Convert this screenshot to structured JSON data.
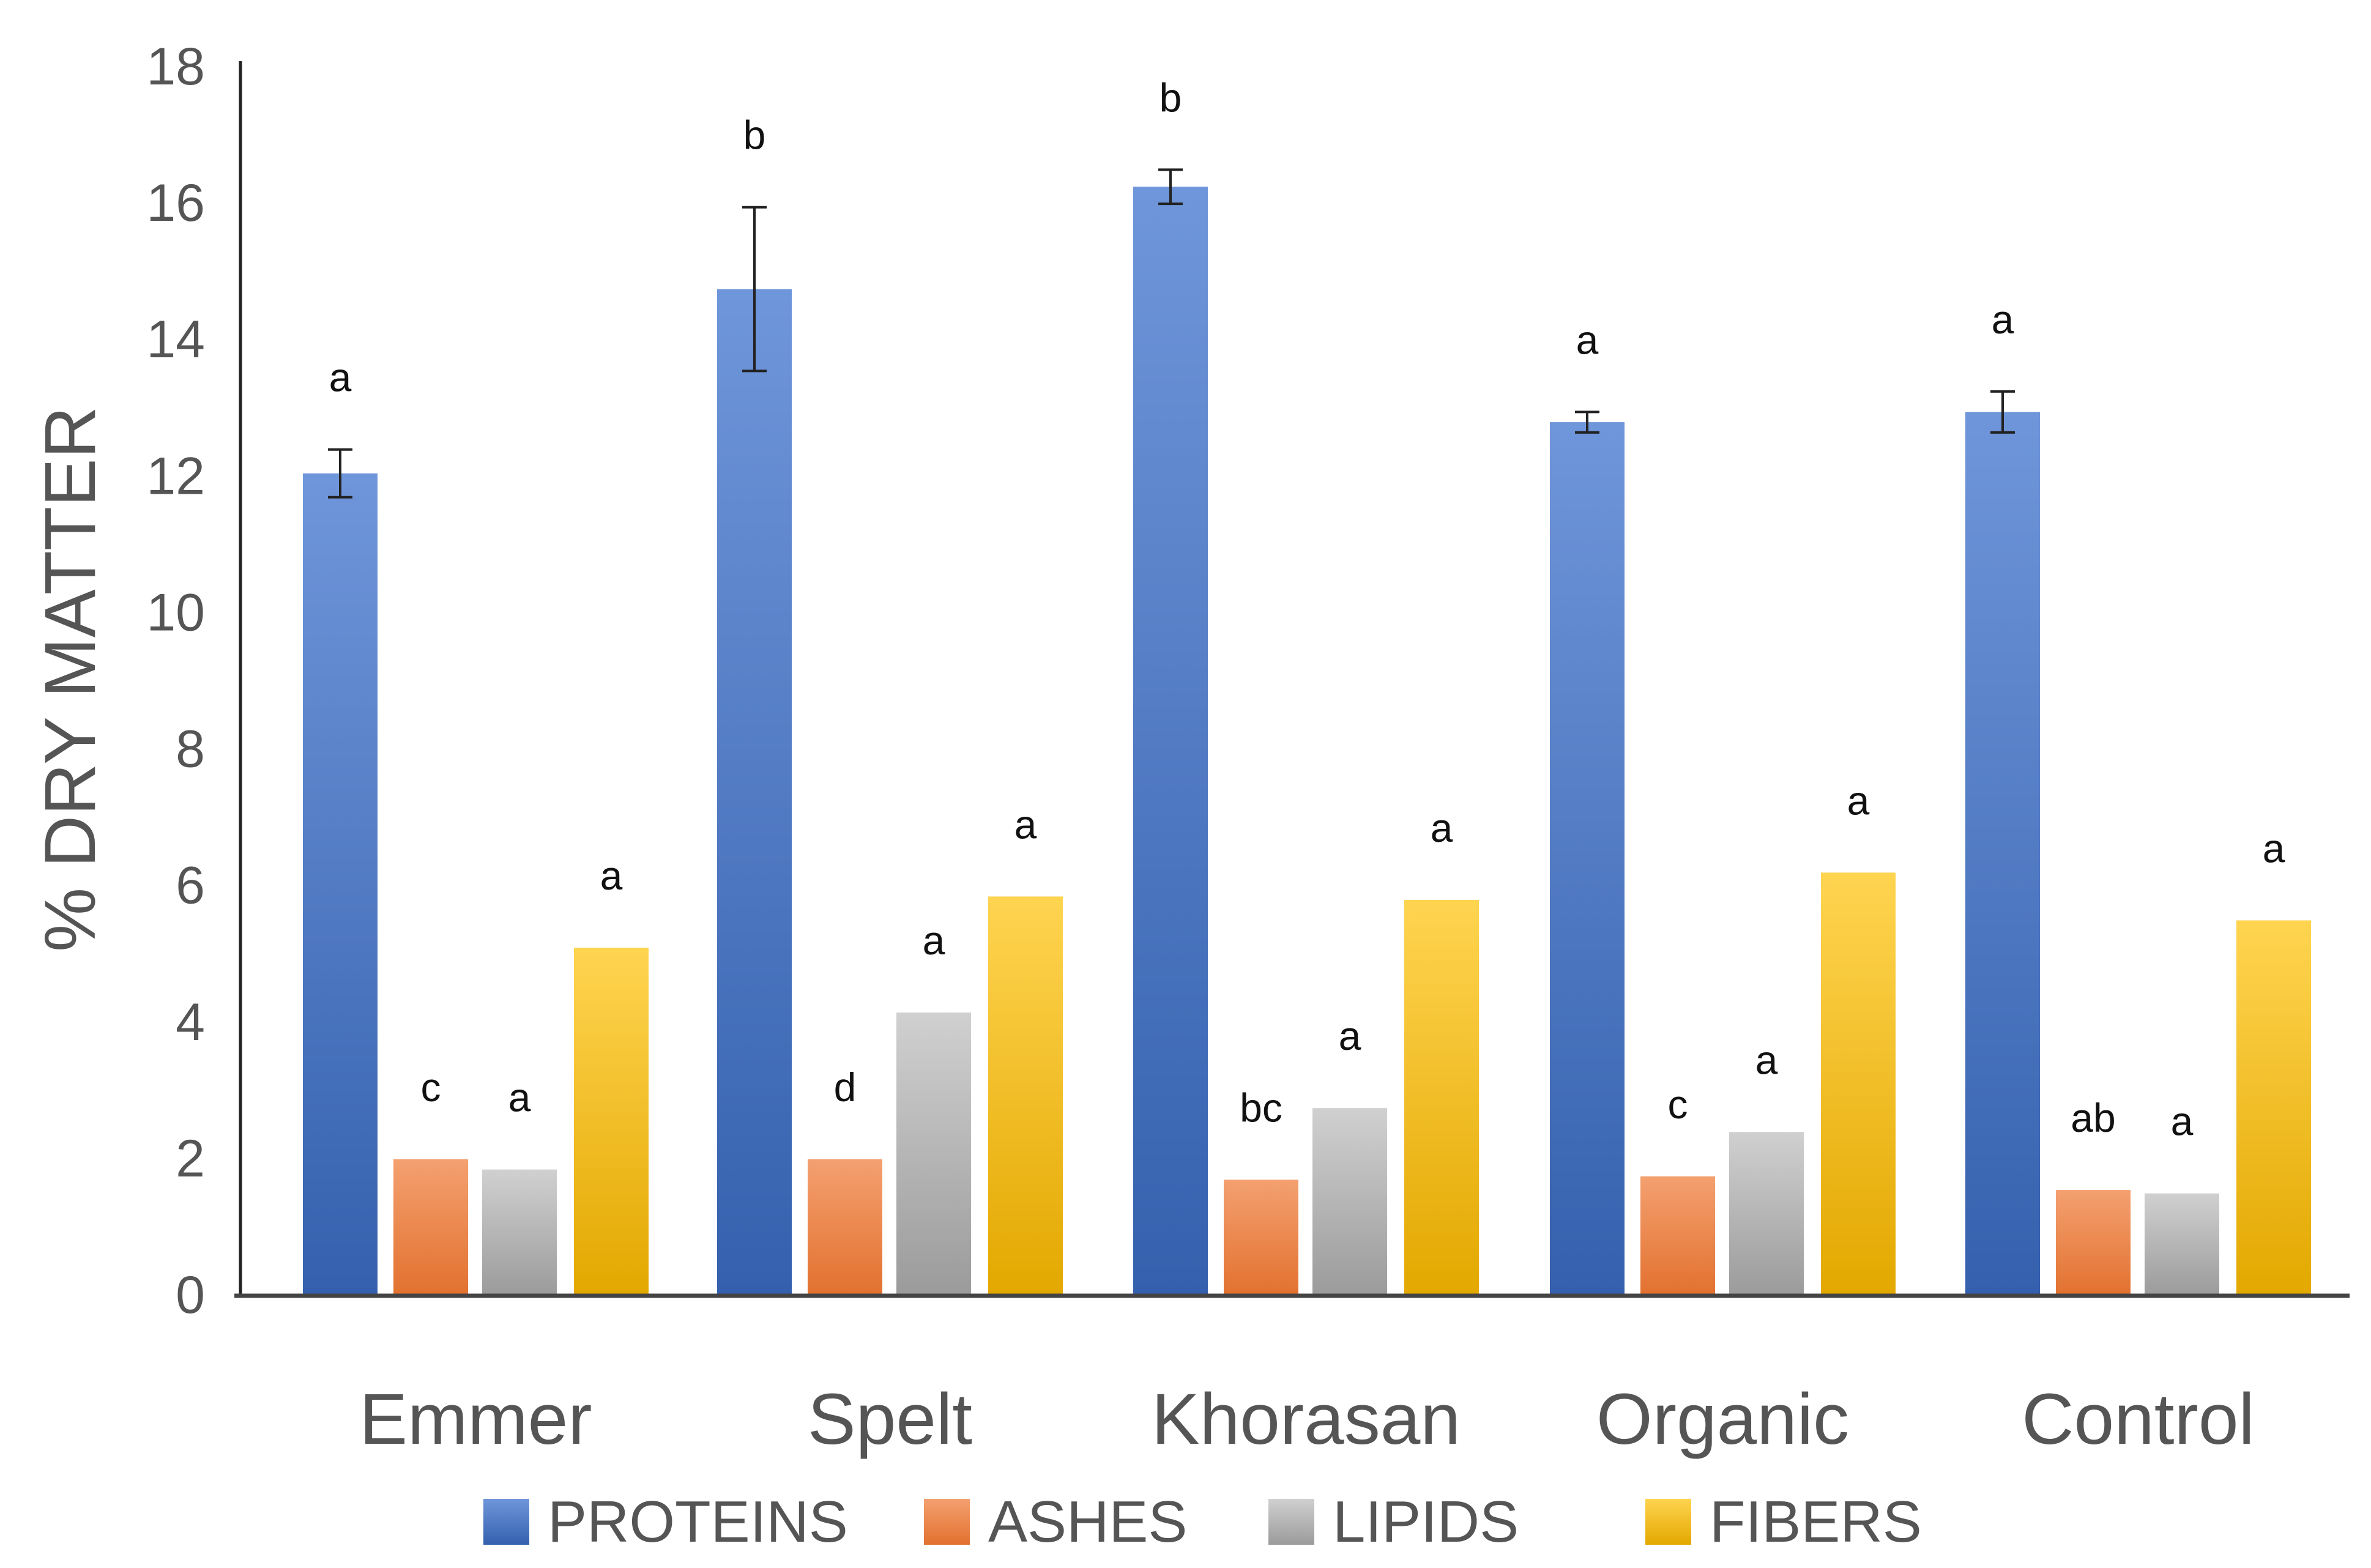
{
  "chart_data": {
    "type": "bar",
    "title": "",
    "xlabel": "",
    "ylabel": "%  DRY MATTER",
    "ylim": [
      0,
      18
    ],
    "yticks": [
      0,
      2,
      4,
      6,
      8,
      10,
      12,
      14,
      16,
      18
    ],
    "grid": false,
    "legend_position": "bottom",
    "error_bars": "only on PROTEINS",
    "categories": [
      "Emmer",
      "Spelt",
      "Khorasan",
      "Organic",
      "Control"
    ],
    "series": [
      {
        "name": "PROTEINS",
        "color_top": "#6f96da",
        "color_bottom": "#3460ad",
        "values": [
          12.05,
          14.75,
          16.25,
          12.8,
          12.95
        ],
        "error": [
          0.35,
          1.2,
          0.25,
          0.15,
          0.3
        ],
        "labels": [
          "a",
          "b",
          "b",
          "a",
          "a"
        ]
      },
      {
        "name": "ASHES",
        "color_top": "#f4a070",
        "color_bottom": "#e2712f",
        "values": [
          2.0,
          2.0,
          1.7,
          1.75,
          1.55
        ],
        "labels": [
          "c",
          "d",
          "bc",
          "c",
          "ab"
        ]
      },
      {
        "name": "LIPIDS",
        "color_top": "#d0d0d0",
        "color_bottom": "#9b9b9b",
        "values": [
          1.85,
          4.15,
          2.75,
          2.4,
          1.5
        ],
        "labels": [
          "a",
          "a",
          "a",
          "a",
          "a"
        ]
      },
      {
        "name": "FIBERS",
        "color_top": "#ffd450",
        "color_bottom": "#e3a800",
        "values": [
          5.1,
          5.85,
          5.8,
          6.2,
          5.5
        ],
        "labels": [
          "a",
          "a",
          "a",
          "a",
          "a"
        ]
      }
    ]
  }
}
